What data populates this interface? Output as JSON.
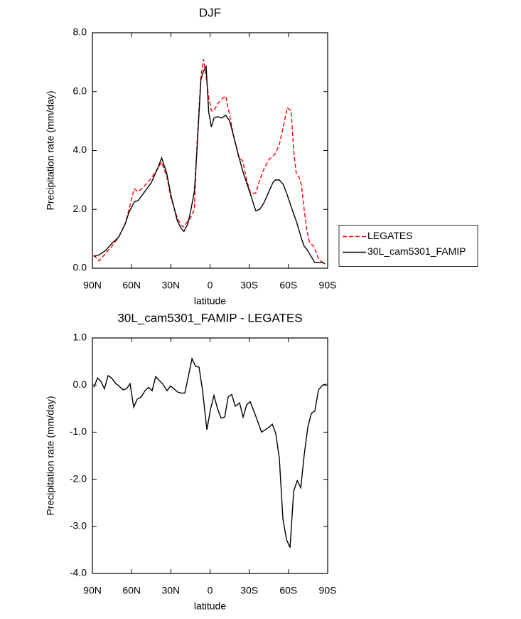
{
  "chart_data": [
    {
      "type": "line",
      "title": "DJF",
      "x_label": "latitude",
      "y_label": "Precipitation rate (mm/day)",
      "x": [
        89,
        85,
        80,
        75,
        70,
        65,
        62,
        58,
        55,
        50,
        45,
        40,
        37,
        33,
        30,
        25,
        22,
        20,
        17,
        15,
        12,
        10,
        7,
        5,
        3,
        1,
        -1,
        -3,
        -6,
        -9,
        -12,
        -15,
        -18,
        -22,
        -25,
        -28,
        -31,
        -35,
        -38,
        -41,
        -45,
        -48,
        -50,
        -53,
        -56,
        -59,
        -62,
        -64,
        -66,
        -68,
        -70,
        -72,
        -74,
        -76,
        -78,
        -80,
        -83,
        -86,
        -88
      ],
      "series": [
        {
          "name": "LEGATES",
          "color": "#ff0000",
          "line_style": "dashed",
          "values": [
            0.45,
            0.25,
            0.5,
            0.75,
            1.05,
            1.5,
            2.0,
            2.7,
            2.6,
            2.8,
            3.05,
            3.4,
            3.6,
            3.1,
            2.4,
            1.7,
            1.45,
            1.4,
            1.6,
            1.7,
            2.0,
            4.2,
            6.5,
            7.1,
            6.5,
            5.8,
            5.35,
            5.35,
            5.6,
            5.75,
            5.85,
            5.2,
            4.5,
            3.75,
            3.65,
            3.0,
            2.55,
            2.55,
            3.0,
            3.35,
            3.7,
            3.8,
            3.9,
            4.2,
            4.8,
            5.45,
            5.35,
            4.0,
            3.2,
            3.1,
            2.8,
            2.0,
            1.3,
            0.9,
            0.8,
            0.7,
            0.3,
            0.2,
            0.1
          ]
        },
        {
          "name": "30L_cam5301_FAMIP",
          "color": "#000000",
          "line_style": "solid",
          "values": [
            0.4,
            0.45,
            0.6,
            0.85,
            1.05,
            1.5,
            1.9,
            2.25,
            2.3,
            2.6,
            2.9,
            3.4,
            3.75,
            3.2,
            2.5,
            1.6,
            1.35,
            1.25,
            1.5,
            1.9,
            2.6,
            4.0,
            6.4,
            6.7,
            6.85,
            5.3,
            4.8,
            5.1,
            5.15,
            5.1,
            5.2,
            5.0,
            4.5,
            3.8,
            3.3,
            2.9,
            2.5,
            1.95,
            2.0,
            2.2,
            2.6,
            2.9,
            3.0,
            3.0,
            2.85,
            2.5,
            2.1,
            1.85,
            1.6,
            1.3,
            1.0,
            0.75,
            0.65,
            0.5,
            0.35,
            0.2,
            0.2,
            0.2,
            0.15
          ]
        }
      ],
      "xlim": [
        90,
        -90
      ],
      "xticks": [
        {
          "value": 90,
          "label": "90N"
        },
        {
          "value": 60,
          "label": "60N"
        },
        {
          "value": 30,
          "label": "30N"
        },
        0,
        {
          "value": -30,
          "label": "30S"
        },
        {
          "value": -60,
          "label": "60S"
        },
        {
          "value": -90,
          "label": "90S"
        }
      ],
      "ylim": [
        0,
        8
      ],
      "yticks": [
        {
          "value": 0,
          "label": "0.0"
        },
        {
          "value": 2,
          "label": "2.0"
        },
        {
          "value": 4,
          "label": "4.0"
        },
        {
          "value": 6,
          "label": "6.0"
        },
        {
          "value": 8,
          "label": "8.0"
        }
      ],
      "legend": "right"
    },
    {
      "type": "line",
      "title": "30L_cam5301_FAMIP - LEGATES",
      "x_label": "latitude",
      "y_label": "Precipitation rate (mm/day)",
      "x": [
        89,
        86,
        83.5,
        80.8,
        78,
        75.3,
        72,
        69.3,
        66.6,
        63.9,
        61.2,
        58.4,
        55.7,
        52.5,
        49.8,
        47,
        44.3,
        41.6,
        38.9,
        36.1,
        32.9,
        30.2,
        27.5,
        24.7,
        22,
        19.3,
        16.6,
        13.8,
        11.1,
        8.4,
        5.7,
        2.4,
        -0.3,
        -3,
        -5.7,
        -8.4,
        -11.2,
        -13.9,
        -16.6,
        -19.3,
        -22.6,
        -25.3,
        -28,
        -30.7,
        -33.5,
        -36.2,
        -39.4,
        -42.2,
        -44.9,
        -47.6,
        -50.3,
        -53,
        -55.8,
        -58.5,
        -61.2,
        -64,
        -66.7,
        -69.4,
        -72.1,
        -74.8,
        -77.5,
        -80.2,
        -83,
        -86.2,
        -89
      ],
      "series": [
        {
          "color": "#000000",
          "line_style": "solid",
          "values": [
            -0.05,
            0.15,
            0.08,
            -0.08,
            0.2,
            0.15,
            0.03,
            -0.03,
            -0.1,
            -0.08,
            0.03,
            -0.47,
            -0.3,
            -0.25,
            -0.12,
            -0.05,
            -0.12,
            0.18,
            0.1,
            0.02,
            -0.12,
            -0.02,
            -0.08,
            -0.15,
            -0.17,
            -0.17,
            0.18,
            0.56,
            0.4,
            0.38,
            -0.12,
            -0.95,
            -0.52,
            -0.22,
            -0.5,
            -0.7,
            -0.68,
            -0.25,
            -0.2,
            -0.45,
            -0.38,
            -0.68,
            -0.42,
            -0.35,
            -0.55,
            -0.75,
            -1.0,
            -0.95,
            -0.9,
            -0.83,
            -1.03,
            -1.55,
            -2.85,
            -3.28,
            -3.45,
            -2.25,
            -2.03,
            -2.18,
            -1.47,
            -0.9,
            -0.6,
            -0.55,
            -0.1,
            0.0,
            0.02
          ]
        }
      ],
      "xlim": [
        90,
        -90
      ],
      "xticks": [
        {
          "value": 90,
          "label": "90N"
        },
        {
          "value": 60,
          "label": "60N"
        },
        {
          "value": 30,
          "label": "30N"
        },
        0,
        {
          "value": -30,
          "label": "30S"
        },
        {
          "value": -60,
          "label": "60S"
        },
        {
          "value": -90,
          "label": "90S"
        }
      ],
      "ylim": [
        -4,
        1
      ],
      "yticks": [
        {
          "value": -4,
          "label": "-4.0"
        },
        {
          "value": -3,
          "label": "-3.0"
        },
        {
          "value": -2,
          "label": "-2.0"
        },
        {
          "value": -1,
          "label": "-1.0"
        },
        {
          "value": 0,
          "label": "0.0"
        },
        {
          "value": 1,
          "label": "1.0"
        }
      ]
    }
  ]
}
